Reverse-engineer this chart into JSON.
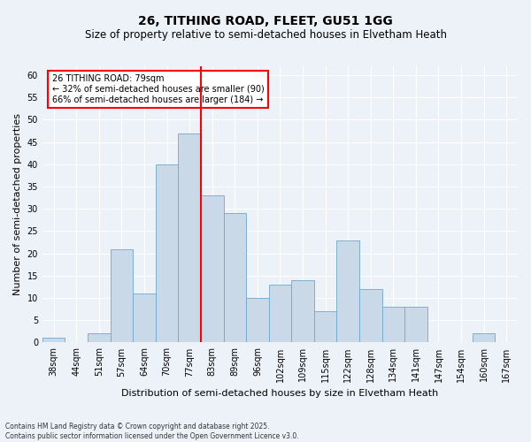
{
  "title": "26, TITHING ROAD, FLEET, GU51 1GG",
  "subtitle": "Size of property relative to semi-detached houses in Elvetham Heath",
  "xlabel": "Distribution of semi-detached houses by size in Elvetham Heath",
  "ylabel": "Number of semi-detached properties",
  "footer": "Contains HM Land Registry data © Crown copyright and database right 2025.\nContains public sector information licensed under the Open Government Licence v3.0.",
  "bins": [
    "38sqm",
    "44sqm",
    "51sqm",
    "57sqm",
    "64sqm",
    "70sqm",
    "77sqm",
    "83sqm",
    "89sqm",
    "96sqm",
    "102sqm",
    "109sqm",
    "115sqm",
    "122sqm",
    "128sqm",
    "134sqm",
    "141sqm",
    "147sqm",
    "154sqm",
    "160sqm",
    "167sqm"
  ],
  "values": [
    1,
    0,
    2,
    21,
    11,
    40,
    47,
    33,
    29,
    10,
    13,
    14,
    7,
    23,
    12,
    8,
    8,
    0,
    0,
    2,
    0
  ],
  "bar_color": "#c9d9e8",
  "bar_edge_color": "#6ea8cb",
  "background_color": "#edf2f8",
  "grid_color": "#ffffff",
  "vline_x": 6.5,
  "vline_color": "red",
  "annotation_title": "26 TITHING ROAD: 79sqm",
  "annotation_line1": "← 32% of semi-detached houses are smaller (90)",
  "annotation_line2": "66% of semi-detached houses are larger (184) →",
  "annotation_box_color": "white",
  "annotation_box_edge": "red",
  "ylim": [
    0,
    62
  ],
  "yticks": [
    0,
    5,
    10,
    15,
    20,
    25,
    30,
    35,
    40,
    45,
    50,
    55,
    60
  ],
  "title_fontsize": 10,
  "subtitle_fontsize": 8.5,
  "ylabel_fontsize": 8,
  "xlabel_fontsize": 8,
  "tick_fontsize": 7,
  "footer_fontsize": 5.5
}
